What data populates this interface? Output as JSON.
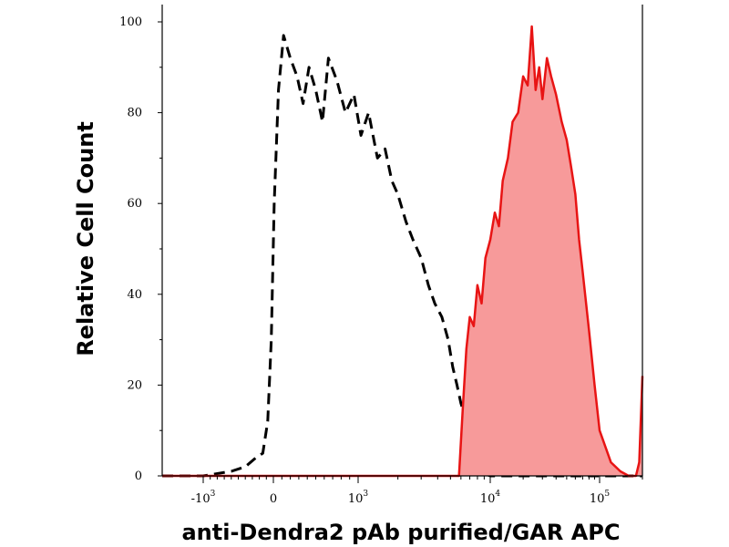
{
  "chart_data": {
    "type": "area",
    "title": "",
    "xlabel": "anti-Dendra2 pAb purified/GAR APC",
    "ylabel": "Relative Cell Count",
    "x_scale": "biexponential",
    "xlim": [
      -2000,
      200000
    ],
    "ylim": [
      0,
      105
    ],
    "grid": false,
    "legend": "none",
    "y_ticks": [
      "0",
      "20",
      "40",
      "60",
      "80",
      "100"
    ],
    "y_tick_values": [
      0,
      20,
      40,
      60,
      80,
      100
    ],
    "x_ticks": [
      {
        "base": "-10",
        "exp": "3",
        "value": -1000
      },
      {
        "base": "0",
        "exp": "",
        "value": 0
      },
      {
        "base": "10",
        "exp": "3",
        "value": 1000
      },
      {
        "base": "10",
        "exp": "4",
        "value": 10000
      },
      {
        "base": "10",
        "exp": "5",
        "value": 100000
      }
    ],
    "series": [
      {
        "style": "dashed",
        "color": "#000000",
        "fill": "none",
        "x": [
          -2000,
          -1000,
          -600,
          -400,
          -250,
          -150,
          -80,
          -30,
          10,
          60,
          120,
          200,
          280,
          350,
          420,
          500,
          580,
          650,
          750,
          850,
          950,
          1050,
          1200,
          1400,
          1600,
          1800,
          2000,
          2300,
          2600,
          3000,
          3400,
          3800,
          4300,
          4800,
          5200,
          5600,
          6000,
          6300,
          6600,
          7000,
          8000,
          10000,
          20000,
          50000,
          100000,
          200000
        ],
        "y": [
          0,
          0,
          1,
          2,
          4,
          5,
          12,
          30,
          60,
          85,
          97,
          92,
          88,
          82,
          90,
          85,
          78,
          92,
          87,
          80,
          84,
          75,
          80,
          70,
          72,
          65,
          62,
          56,
          52,
          48,
          42,
          38,
          35,
          30,
          24,
          20,
          16,
          14,
          8,
          3,
          1,
          0,
          0,
          0,
          0,
          0
        ]
      },
      {
        "style": "solid",
        "color": "#e81414",
        "fill": "#f79a9a",
        "x": [
          -2000,
          4000,
          5800,
          6200,
          6600,
          7000,
          7500,
          8000,
          8600,
          9200,
          10000,
          11000,
          12000,
          13000,
          14500,
          16000,
          18000,
          20000,
          22000,
          24000,
          26000,
          28000,
          30000,
          33000,
          36000,
          40000,
          45000,
          50000,
          55000,
          60000,
          65000,
          70000,
          80000,
          90000,
          100000,
          120000,
          140000,
          160000,
          180000,
          190000,
          200000
        ],
        "y": [
          0,
          0,
          0,
          15,
          28,
          35,
          33,
          42,
          38,
          48,
          52,
          58,
          55,
          65,
          70,
          78,
          80,
          88,
          86,
          99,
          85,
          90,
          83,
          92,
          88,
          84,
          78,
          74,
          68,
          62,
          52,
          45,
          32,
          20,
          10,
          3,
          1,
          0,
          0,
          3,
          22
        ]
      }
    ]
  }
}
